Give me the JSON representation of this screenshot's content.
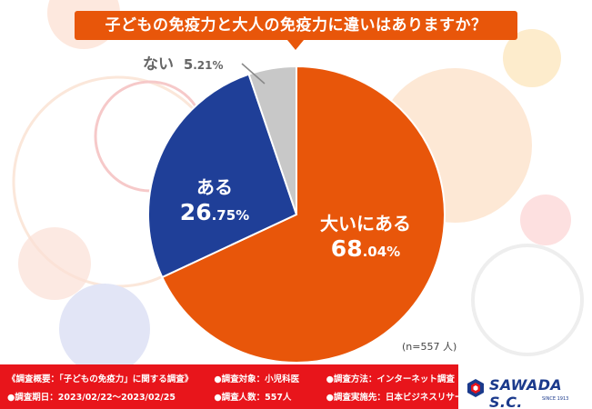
{
  "title": "子どもの免疫力と大人の免疫力に違いはありますか？",
  "chart_data": {
    "type": "pie",
    "slices": [
      {
        "label": "大いにある",
        "value": 68.04,
        "value_int": "68",
        "value_dec": ".04%",
        "color": "#e8560a"
      },
      {
        "label": "ある",
        "value": 26.75,
        "value_int": "26",
        "value_dec": ".75%",
        "color": "#1f3f98"
      },
      {
        "label": "ない",
        "value": 5.21,
        "value_int": "5",
        "value_dec": ".21%",
        "color": "#c8c8c8"
      }
    ],
    "sample_size": "(n=557 人)"
  },
  "footer": {
    "row1": [
      "《調査概要：「子どもの免疫力」に関する調査》",
      "●調査対象：小児科医",
      "●調査方法：インターネット調査"
    ],
    "row2": [
      "●調査期日：2023/02/22〜2023/02/25",
      "●調査人数：557人",
      "●調査実施先：日本ビジネスリサーチ"
    ]
  },
  "brand": {
    "name": "SAWADA S.C.",
    "since": "SINCE 1913",
    "logo_icon": "sawada-logo-icon",
    "colors": {
      "navy": "#1b3a8c",
      "red": "#e8151b"
    }
  }
}
